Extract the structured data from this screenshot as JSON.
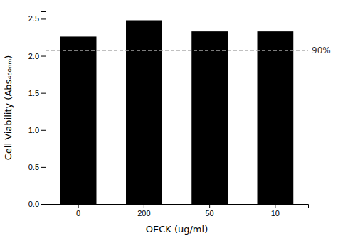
{
  "chart_data": {
    "type": "bar",
    "categories": [
      "0",
      "200",
      "50",
      "10"
    ],
    "values": [
      2.26,
      2.48,
      2.33,
      2.33
    ],
    "color": "#000000",
    "ylabel": "Cell Viability (Abs₄₆₀ₙₘ)",
    "xlabel": "OECK (ug/ml)",
    "ylim": [
      0,
      2.6
    ],
    "yticks": [
      {
        "value": 0,
        "label": "0.0"
      },
      0.5,
      {
        "value": 1,
        "label": "1.0"
      },
      1.5,
      {
        "value": 2,
        "label": "2.0"
      },
      2.5
    ],
    "grid": false,
    "annotations": [
      {
        "text": "90%",
        "y": 2.07,
        "color": "#aaaaaa",
        "line_style": "dashed"
      }
    ]
  }
}
